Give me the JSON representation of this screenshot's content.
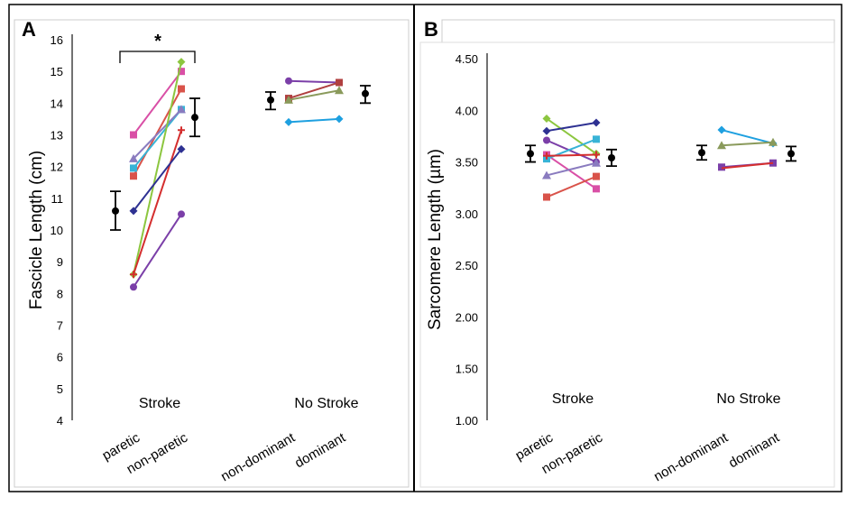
{
  "chart_data": [
    {
      "type": "scatter",
      "panel_label": "A",
      "ylabel": "Fascicle Length (cm)",
      "ylim": [
        4,
        16
      ],
      "yticks": [
        "4",
        "5",
        "6",
        "7",
        "8",
        "9",
        "10",
        "11",
        "12",
        "13",
        "14",
        "15",
        "16"
      ],
      "groups": [
        {
          "name": "Stroke",
          "categories": [
            "paretic",
            "non-paretic"
          ],
          "means": [
            {
              "mean": 10.6,
              "low": 10.0,
              "high": 11.22
            },
            {
              "mean": 13.55,
              "low": 12.95,
              "high": 14.15
            }
          ],
          "series": [
            {
              "color": "#d94fa6",
              "marker": "square",
              "values": [
                13.0,
                15.0
              ]
            },
            {
              "color": "#d9534a",
              "marker": "square",
              "values": [
                11.7,
                14.45
              ]
            },
            {
              "color": "#38b3d6",
              "marker": "square",
              "values": [
                11.95,
                13.8
              ]
            },
            {
              "color": "#8a7bbf",
              "marker": "triangle",
              "values": [
                12.25,
                13.8
              ]
            },
            {
              "color": "#8cc63f",
              "marker": "diamond",
              "values": [
                8.6,
                15.3
              ]
            },
            {
              "color": "#d42e2e",
              "marker": "plus",
              "values": [
                8.6,
                13.15
              ]
            },
            {
              "color": "#2e3192",
              "marker": "diamond",
              "values": [
                10.6,
                12.55
              ]
            },
            {
              "color": "#7b3fa8",
              "marker": "circle",
              "values": [
                8.2,
                10.5
              ]
            }
          ]
        },
        {
          "name": "No Stroke",
          "categories": [
            "non-dominant",
            "dominant"
          ],
          "means": [
            {
              "mean": 14.1,
              "low": 13.8,
              "high": 14.35
            },
            {
              "mean": 14.3,
              "low": 14.0,
              "high": 14.55
            }
          ],
          "series": [
            {
              "color": "#7b3fa8",
              "marker": "circle",
              "values": [
                14.7,
                14.65
              ]
            },
            {
              "color": "#b04040",
              "marker": "square",
              "values": [
                14.15,
                14.65
              ]
            },
            {
              "color": "#8a9a5b",
              "marker": "triangle",
              "values": [
                14.1,
                14.4
              ]
            },
            {
              "color": "#1ea0e0",
              "marker": "diamond",
              "values": [
                13.4,
                13.5
              ]
            }
          ]
        }
      ],
      "annotation": "*"
    },
    {
      "type": "scatter",
      "panel_label": "B",
      "ylabel": "Sarcomere Length (µm)",
      "ylim": [
        1.0,
        4.5
      ],
      "yticks": [
        "1.00",
        "1.50",
        "2.00",
        "2.50",
        "3.00",
        "3.50",
        "4.00",
        "4.50"
      ],
      "groups": [
        {
          "name": "Stroke",
          "categories": [
            "paretic",
            "non-paretic"
          ],
          "means": [
            {
              "mean": 3.58,
              "low": 3.5,
              "high": 3.66
            },
            {
              "mean": 3.54,
              "low": 3.46,
              "high": 3.62
            }
          ],
          "series": [
            {
              "color": "#8cc63f",
              "marker": "diamond",
              "values": [
                3.92,
                3.58
              ]
            },
            {
              "color": "#2e3192",
              "marker": "diamond",
              "values": [
                3.8,
                3.88
              ]
            },
            {
              "color": "#7b3fa8",
              "marker": "circle",
              "values": [
                3.71,
                3.5
              ]
            },
            {
              "color": "#d94fa6",
              "marker": "square",
              "values": [
                3.57,
                3.24
              ]
            },
            {
              "color": "#38b3d6",
              "marker": "square",
              "values": [
                3.53,
                3.72
              ]
            },
            {
              "color": "#d42e2e",
              "marker": "plus",
              "values": [
                3.56,
                3.57
              ]
            },
            {
              "color": "#8a7bbf",
              "marker": "triangle",
              "values": [
                3.37,
                3.49
              ]
            },
            {
              "color": "#d9534a",
              "marker": "square",
              "values": [
                3.16,
                3.36
              ]
            }
          ]
        },
        {
          "name": "No Stroke",
          "categories": [
            "non-dominant",
            "dominant"
          ],
          "means": [
            {
              "mean": 3.59,
              "low": 3.52,
              "high": 3.66
            },
            {
              "mean": 3.58,
              "low": 3.51,
              "high": 3.65
            }
          ],
          "series": [
            {
              "color": "#1ea0e0",
              "marker": "diamond",
              "values": [
                3.81,
                3.68
              ]
            },
            {
              "color": "#8a9a5b",
              "marker": "triangle",
              "values": [
                3.66,
                3.69
              ]
            },
            {
              "color": "#7b3fa8",
              "marker": "square",
              "values": [
                3.45,
                3.49
              ]
            },
            {
              "color": "#d42e2e",
              "marker": "none",
              "values": [
                3.44,
                3.49
              ]
            }
          ]
        }
      ]
    }
  ]
}
